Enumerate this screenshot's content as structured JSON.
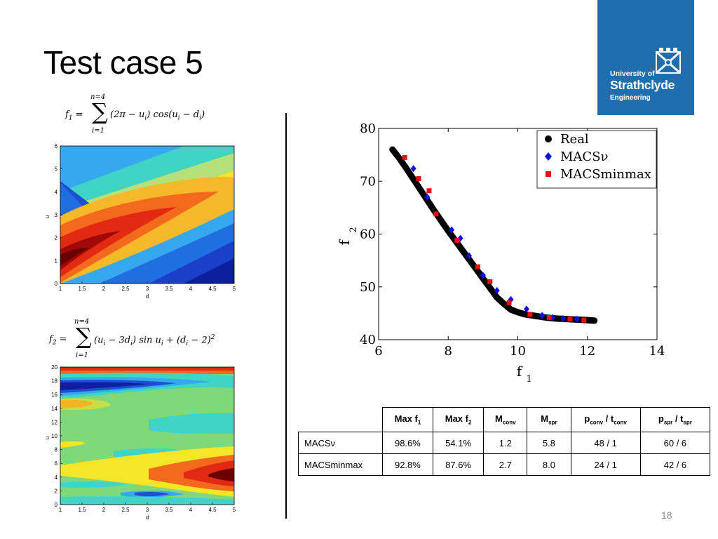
{
  "slide": {
    "title": "Test case 5",
    "page_number": "18"
  },
  "logo": {
    "line1": "University of",
    "line2": "Strathclyde",
    "line3": "Engineering"
  },
  "formula_f1": {
    "lhs": "f",
    "lhs_sub": "1",
    "upper": "n=4",
    "lower": "i=1",
    "body": "(2π − u",
    "body_sub": "i",
    "body2": ") cos(u",
    "body2_sub": "i",
    "body3": " − d",
    "body3_sub": "i",
    "body4": ")"
  },
  "formula_f2": {
    "lhs": "f",
    "lhs_sub": "2",
    "upper": "n=4",
    "lower": "i=1",
    "body": "(u",
    "body_sub": "i",
    "body2": " − 3d",
    "body2_sub": "i",
    "body3": ") sin u",
    "body3_sub": "i",
    "body4": " + (d",
    "body4_sub": "i",
    "body5": " − 2)",
    "body5_sup": "2"
  },
  "contour1": {
    "xlabel": "d",
    "ylabel": "u",
    "xticks": [
      "1",
      "1.5",
      "2",
      "2.5",
      "3",
      "3.5",
      "4",
      "4.5",
      "5"
    ],
    "yticks": [
      "0",
      "1",
      "2",
      "3",
      "4",
      "5",
      "6"
    ]
  },
  "contour2": {
    "xlabel": "d",
    "ylabel": "u",
    "xticks": [
      "1",
      "1.5",
      "2",
      "2.5",
      "3",
      "3.5",
      "4",
      "4.5",
      "5"
    ],
    "yticks": [
      "0",
      "2",
      "4",
      "6",
      "8",
      "10",
      "12",
      "14",
      "16",
      "18",
      "20"
    ]
  },
  "chart_data": {
    "type": "scatter",
    "xlabel": "f",
    "xlabel_sub": "1",
    "ylabel": "f",
    "ylabel_sub": "2",
    "xlim": [
      6,
      14
    ],
    "ylim": [
      40,
      80
    ],
    "xticks": [
      "6",
      "8",
      "10",
      "12",
      "14"
    ],
    "yticks": [
      "40",
      "50",
      "60",
      "70",
      "80"
    ],
    "legend_position": "top-right",
    "series": [
      {
        "name": "Real",
        "marker": "circle",
        "color": "#000000",
        "x": [
          6.4,
          6.6,
          6.8,
          7.0,
          7.2,
          7.4,
          7.6,
          7.8,
          8.0,
          8.2,
          8.4,
          8.6,
          8.8,
          9.0,
          9.2,
          9.4,
          9.6,
          9.8,
          10.0,
          10.2,
          10.5,
          10.8,
          11.1,
          11.4,
          11.7,
          12.0,
          12.2
        ],
        "y": [
          76,
          74.3,
          72.4,
          70.4,
          68.4,
          66.4,
          64.4,
          62.5,
          60.6,
          58.8,
          57.0,
          55.2,
          53.4,
          51.6,
          49.8,
          48.0,
          46.8,
          45.7,
          45.2,
          44.8,
          44.5,
          44.2,
          44.0,
          43.9,
          43.8,
          43.7,
          43.6
        ]
      },
      {
        "name": "MACSν",
        "marker": "diamond",
        "color": "#1010e6",
        "x": [
          7.0,
          7.4,
          8.1,
          8.35,
          8.6,
          9.0,
          9.4,
          9.8,
          10.25,
          10.7,
          11.0,
          11.3,
          11.7
        ],
        "y": [
          72.4,
          67.0,
          60.8,
          59.2,
          55.9,
          52.2,
          49.3,
          47.6,
          45.8,
          44.6,
          44.2,
          44.0,
          43.9
        ]
      },
      {
        "name": "MACSminmax",
        "marker": "square",
        "color": "#e61010",
        "x": [
          6.75,
          7.15,
          7.45,
          7.65,
          8.25,
          8.85,
          9.2,
          9.75,
          10.35,
          10.9,
          11.5,
          11.9
        ],
        "y": [
          74.5,
          70.5,
          68.2,
          63.8,
          58.8,
          53.8,
          51.0,
          47.0,
          44.8,
          44.2,
          43.9,
          43.7
        ]
      }
    ]
  },
  "table": {
    "headers": [
      {
        "main": "Max f",
        "sub": "1",
        "tail": ""
      },
      {
        "main": "Max f",
        "sub": "2",
        "tail": ""
      },
      {
        "main": "M",
        "sub": "conv",
        "tail": ""
      },
      {
        "main": "M",
        "sub": "spr",
        "tail": ""
      },
      {
        "main": "p",
        "sub": "conv",
        "tail": " / t",
        "sub2": "conv"
      },
      {
        "main": "p",
        "sub": "spr",
        "tail": " / t",
        "sub2": "spr"
      }
    ],
    "rows": [
      {
        "name": "MACSν",
        "cells": [
          "98.6%",
          "54.1%",
          "1.2",
          "5.8",
          "48 / 1",
          "60 / 6"
        ]
      },
      {
        "name": "MACSminmax",
        "cells": [
          "92.8%",
          "87.6%",
          "2.7",
          "8.0",
          "24 / 1",
          "42 / 6"
        ]
      }
    ]
  },
  "colors": {
    "logo_blue": "#1f6ead",
    "real": "#000000",
    "macs_nu": "#1010e6",
    "macs_minmax": "#e61010"
  }
}
